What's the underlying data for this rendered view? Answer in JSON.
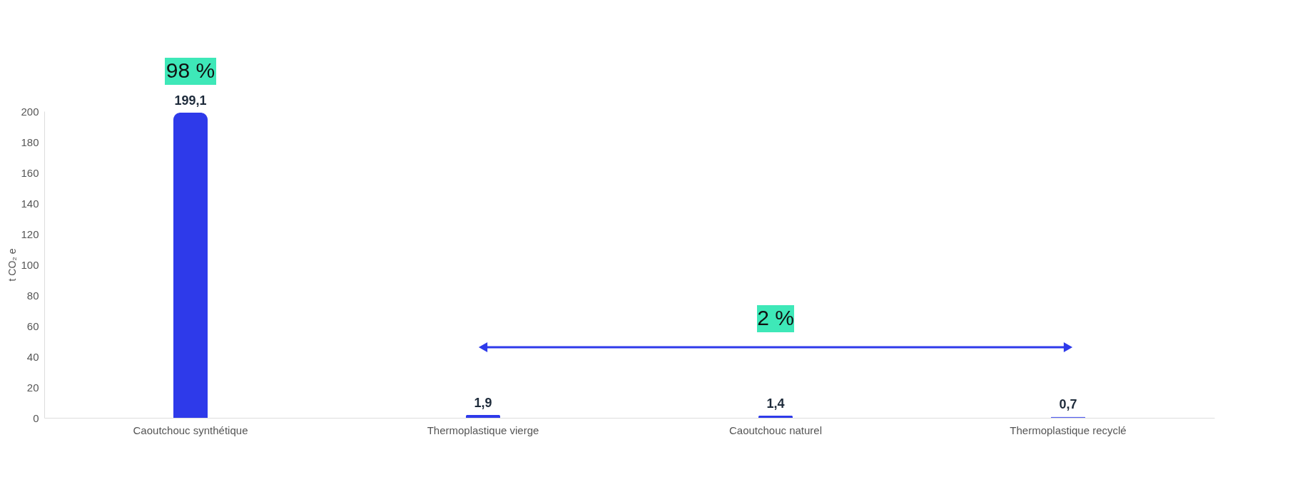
{
  "chart_data": {
    "type": "bar",
    "ylabel": "t CO₂ e",
    "categories": [
      "Caoutchouc synthétique",
      "Thermoplastique vierge",
      "Caoutchouc naturel",
      "Thermoplastique recyclé"
    ],
    "values": [
      199.1,
      1.9,
      1.4,
      0.7
    ],
    "value_labels": [
      "199,1",
      "1,9",
      "1,4",
      "0,7"
    ],
    "colors": [
      "#2e3aea",
      "#2e3aea",
      "#2e3aea",
      "#5560ee"
    ],
    "ylim": [
      0,
      200
    ],
    "yticks": [
      0,
      20,
      40,
      60,
      80,
      100,
      120,
      140,
      160,
      180,
      200
    ],
    "grid": false,
    "annotations": [
      "98 %",
      "2 %"
    ]
  }
}
